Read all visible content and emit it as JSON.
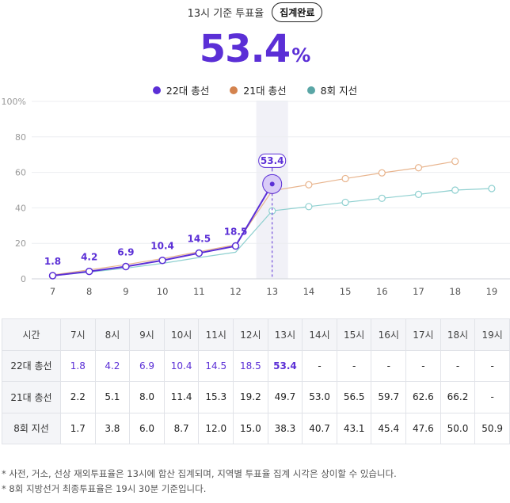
{
  "header": {
    "title": "13시 기준 투표율",
    "badge": "집계완료"
  },
  "current_rate": {
    "value": "53.4",
    "unit": "%"
  },
  "colors": {
    "series_22": "#5b2fd6",
    "series_21": "#e8b48d",
    "series_8": "#8fd0d0",
    "legend_21": "#d4834e",
    "legend_8": "#5aa6a6",
    "highlight": "#f1f1f7"
  },
  "chart_data": {
    "type": "line",
    "x": [
      7,
      8,
      9,
      10,
      11,
      12,
      13,
      14,
      15,
      16,
      17,
      18,
      19
    ],
    "ylim": [
      0,
      100
    ],
    "yticks": [
      "100%",
      "80",
      "60",
      "40",
      "20",
      "0"
    ],
    "ytick_values": [
      100,
      80,
      60,
      40,
      20,
      0
    ],
    "highlight_x": 13,
    "series": [
      {
        "name": "22대 총선",
        "key": "series_22",
        "values": [
          1.8,
          4.2,
          6.9,
          10.4,
          14.5,
          18.5,
          53.4,
          null,
          null,
          null,
          null,
          null,
          null
        ]
      },
      {
        "name": "21대 총선",
        "key": "series_21",
        "values": [
          2.2,
          5.1,
          8.0,
          11.4,
          15.3,
          19.2,
          49.7,
          53.0,
          56.5,
          59.7,
          62.6,
          66.2,
          null
        ]
      },
      {
        "name": "8회 지선",
        "key": "series_8",
        "values": [
          1.7,
          3.8,
          6.0,
          8.7,
          12.0,
          15.0,
          38.3,
          40.7,
          43.1,
          45.4,
          47.6,
          50.0,
          50.9
        ]
      }
    ],
    "data_labels": [
      "1.8",
      "4.2",
      "6.9",
      "10.4",
      "14.5",
      "18.5",
      "53.4"
    ]
  },
  "table": {
    "corner": "시간",
    "hours": [
      "7시",
      "8시",
      "9시",
      "10시",
      "11시",
      "12시",
      "13시",
      "14시",
      "15시",
      "16시",
      "17시",
      "18시",
      "19시"
    ],
    "rows": [
      {
        "label": "22대 총선",
        "values": [
          "1.8",
          "4.2",
          "6.9",
          "10.4",
          "14.5",
          "18.5",
          "53.4",
          "-",
          "-",
          "-",
          "-",
          "-",
          "-"
        ]
      },
      {
        "label": "21대 총선",
        "values": [
          "2.2",
          "5.1",
          "8.0",
          "11.4",
          "15.3",
          "19.2",
          "49.7",
          "53.0",
          "56.5",
          "59.7",
          "62.6",
          "66.2",
          "-"
        ]
      },
      {
        "label": "8회 지선",
        "values": [
          "1.7",
          "3.8",
          "6.0",
          "8.7",
          "12.0",
          "15.0",
          "38.3",
          "40.7",
          "43.1",
          "45.4",
          "47.6",
          "50.0",
          "50.9"
        ]
      }
    ]
  },
  "footnotes": [
    "* 사전, 거소, 선상 재외투표율은 13시에 합산 집계되며, 지역별 투표율 집계 시각은 상이할 수 있습니다.",
    "* 8회 지방선거 최종투표율은 19시 30분 기준입니다."
  ]
}
